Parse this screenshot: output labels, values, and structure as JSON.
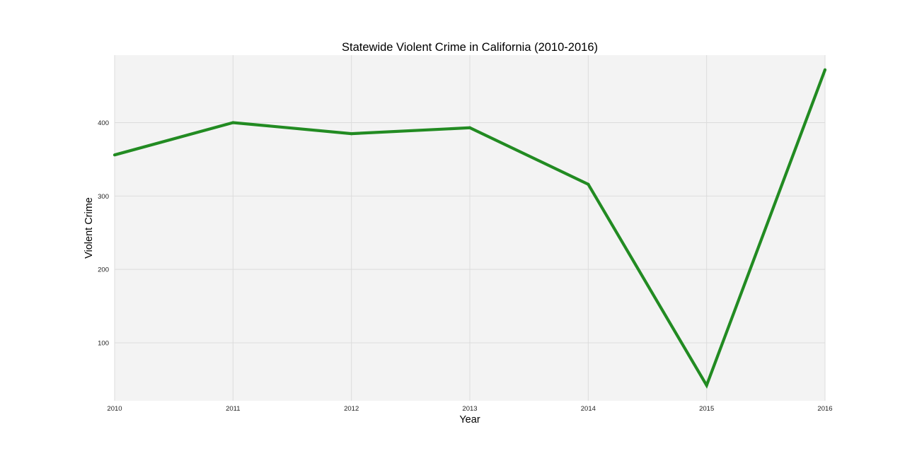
{
  "chart_data": {
    "type": "line",
    "title": "Statewide Violent Crime in California (2010-2016)",
    "xlabel": "Year",
    "ylabel": "Violent Crime",
    "x": [
      2010,
      2011,
      2012,
      2013,
      2014,
      2015,
      2016
    ],
    "x_tick_labels": [
      "2010",
      "2011",
      "2012",
      "2013",
      "2014",
      "2015",
      "2016"
    ],
    "y_ticks": [
      100,
      200,
      300,
      400
    ],
    "y_tick_labels": [
      "100",
      "200",
      "300",
      "400"
    ],
    "xlim": [
      2010,
      2016
    ],
    "ylim": [
      21,
      492
    ],
    "grid": true,
    "legend": "none",
    "series": [
      {
        "values": [
          356,
          400,
          385,
          393,
          316,
          42,
          472
        ],
        "color": "#228b22"
      }
    ],
    "colors": {
      "plot_background": "#f3f3f3",
      "grid": "#dcdcdc"
    }
  }
}
